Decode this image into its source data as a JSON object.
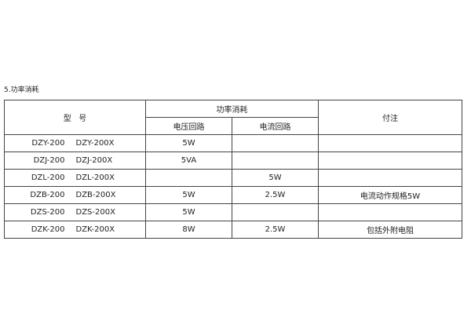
{
  "section_title": "5.功率消耗",
  "table": {
    "headers": {
      "model": "型   号",
      "power": "功率消耗",
      "voltage_circuit": "电压回路",
      "current_circuit": "电流回路",
      "remark": "付注"
    },
    "rows": [
      {
        "model_a": "DZY-200",
        "model_b": "DZY-200X",
        "voltage": "5W",
        "current": "",
        "remark": ""
      },
      {
        "model_a": "DZJ-200",
        "model_b": "DZJ-200X",
        "voltage": "5VA",
        "current": "",
        "remark": ""
      },
      {
        "model_a": "DZL-200",
        "model_b": "DZL-200X",
        "voltage": "",
        "current": "5W",
        "remark": ""
      },
      {
        "model_a": "DZB-200",
        "model_b": "DZB-200X",
        "voltage": "5W",
        "current": "2.5W",
        "remark": "电流动作规格5W"
      },
      {
        "model_a": "DZS-200",
        "model_b": "DZS-200X",
        "voltage": "5W",
        "current": "",
        "remark": ""
      },
      {
        "model_a": "DZK-200",
        "model_b": "DZK-200X",
        "voltage": "8W",
        "current": "2.5W",
        "remark": "包括外附电阻"
      }
    ]
  }
}
